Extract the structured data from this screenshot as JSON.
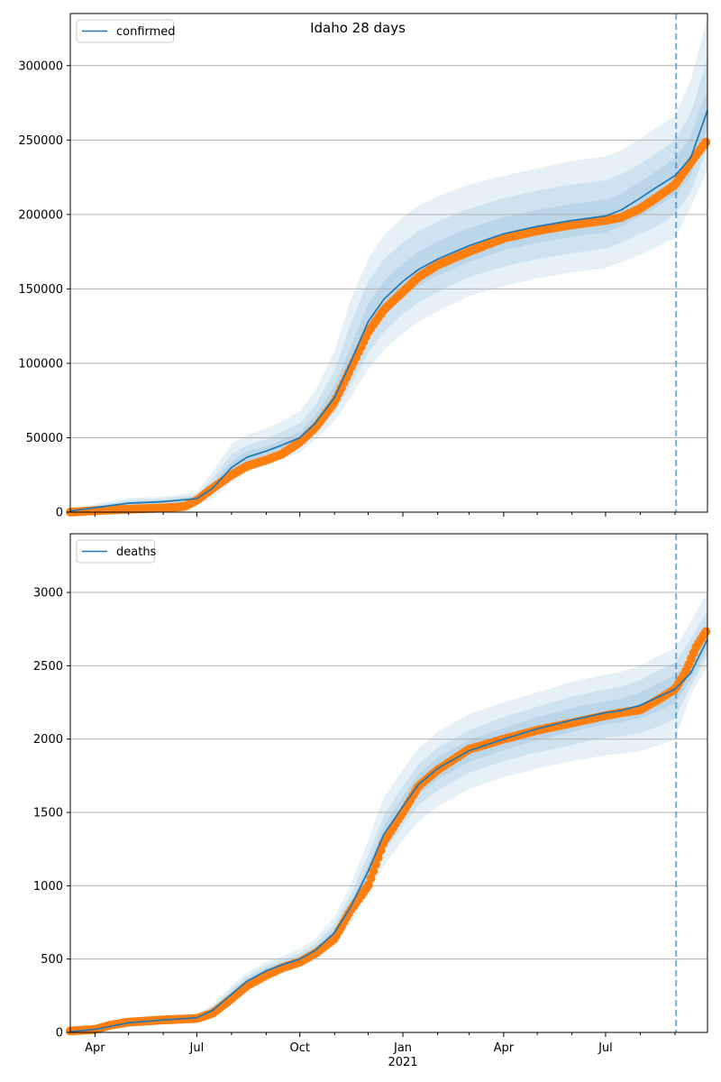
{
  "title": "Idaho 28 days",
  "colors": {
    "model_line": "#1f77b4",
    "observed": "#ff7f0e",
    "band": "#1f77b4",
    "grid": "#b0b0b0",
    "forecast_line": "#1f77b4"
  },
  "x_axis": {
    "start": "2020-03-10",
    "end": "2021-09-30",
    "month_ticks": [
      "2020-04-01",
      "2020-05-01",
      "2020-06-01",
      "2020-07-01",
      "2020-08-01",
      "2020-09-01",
      "2020-10-01",
      "2020-11-01",
      "2020-12-01",
      "2021-01-01",
      "2021-02-01",
      "2021-03-01",
      "2021-04-01",
      "2021-05-01",
      "2021-06-01",
      "2021-07-01",
      "2021-08-01",
      "2021-09-01",
      "2021-10-01"
    ],
    "labels": [
      {
        "date": "2020-04-01",
        "text": "Apr"
      },
      {
        "date": "2020-07-01",
        "text": "Jul"
      },
      {
        "date": "2020-10-01",
        "text": "Oct"
      },
      {
        "date": "2021-01-01",
        "text": "Jan"
      },
      {
        "date": "2021-04-01",
        "text": "Apr"
      },
      {
        "date": "2021-07-01",
        "text": "Jul"
      }
    ],
    "year_label": {
      "date": "2021-01-01",
      "text": "2021"
    },
    "forecast_start": "2021-09-02"
  },
  "chart_data": [
    {
      "type": "line",
      "legend": "confirmed",
      "legend_position": "top-left",
      "ylim": [
        0,
        335000
      ],
      "yticks": [
        0,
        50000,
        100000,
        150000,
        200000,
        250000,
        300000
      ],
      "grid": "y",
      "model": {
        "x": [
          "2020-03-10",
          "2020-04-01",
          "2020-05-01",
          "2020-06-01",
          "2020-07-01",
          "2020-07-15",
          "2020-08-01",
          "2020-08-15",
          "2020-09-01",
          "2020-09-15",
          "2020-10-01",
          "2020-10-15",
          "2020-11-01",
          "2020-11-15",
          "2020-12-01",
          "2020-12-15",
          "2021-01-01",
          "2021-01-15",
          "2021-02-01",
          "2021-03-01",
          "2021-04-01",
          "2021-05-01",
          "2021-06-01",
          "2021-07-01",
          "2021-07-15",
          "2021-08-01",
          "2021-08-15",
          "2021-09-01",
          "2021-09-15",
          "2021-09-30"
        ],
        "y": [
          800,
          3000,
          6000,
          7000,
          9000,
          16000,
          30000,
          37000,
          41000,
          45000,
          50000,
          60000,
          77000,
          100000,
          128000,
          143000,
          155000,
          163000,
          170000,
          179000,
          187000,
          192000,
          196000,
          199000,
          203000,
          211000,
          218000,
          226000,
          238000,
          270000
        ],
        "bands": [
          {
            "lo": [
              0,
              1500,
              3500,
              4200,
              5000,
              9000,
              20000,
              27000,
              32000,
              36000,
              40000,
              49000,
              61000,
              77000,
              96000,
              109000,
              120000,
              128000,
              135000,
              145000,
              152000,
              157000,
              161000,
              164000,
              168000,
              173000,
              178000,
              184000,
              205000,
              230000
            ],
            "hi": [
              1800,
              5500,
              9500,
              10500,
              13500,
              27000,
              46000,
              52000,
              56000,
              61000,
              68000,
              82000,
              108000,
              142000,
              170000,
              186000,
              198000,
              206000,
              212000,
              220000,
              226000,
              231000,
              236000,
              239000,
              243000,
              251000,
              258000,
              266000,
              290000,
              332000
            ]
          },
          {
            "lo": [
              200,
              2000,
              4200,
              5000,
              6200,
              11500,
              24000,
              31000,
              35500,
              39500,
              44000,
              53000,
              67000,
              85000,
              107000,
              121000,
              133000,
              141000,
              148000,
              158000,
              165000,
              170000,
              174000,
              177000,
              181000,
              187000,
              192000,
              200000,
              215000,
              245000
            ],
            "hi": [
              1400,
              4500,
              8000,
              9000,
              11500,
              22500,
              39000,
              45000,
              49000,
              54000,
              60000,
              72000,
              95000,
              126000,
              155000,
              170000,
              181000,
              189000,
              195000,
              204000,
              211000,
              216000,
              220000,
              223000,
              227000,
              234000,
              241000,
              250000,
              268000,
              305000
            ]
          },
          {
            "lo": [
              500,
              2500,
              5000,
              6000,
              7500,
              13500,
              27000,
              34000,
              38500,
              42500,
              47000,
              57000,
              72000,
              93000,
              118000,
              132000,
              144000,
              152000,
              159000,
              168000,
              176000,
              181000,
              185000,
              188000,
              192000,
              199000,
              205000,
              213000,
              226000,
              258000
            ],
            "hi": [
              1100,
              3700,
              7000,
              8000,
              10300,
              19000,
              34000,
              41000,
              44000,
              48500,
              54000,
              65000,
              85000,
              110000,
              140000,
              155000,
              167000,
              175000,
              182000,
              191000,
              198000,
              203000,
              207000,
              210000,
              214000,
              222000,
              229000,
              238000,
              252000,
              285000
            ]
          }
        ]
      },
      "observed": {
        "x": [
          "2020-03-10",
          "2020-04-01",
          "2020-05-01",
          "2020-06-01",
          "2020-06-20",
          "2020-07-01",
          "2020-07-15",
          "2020-08-01",
          "2020-08-15",
          "2020-09-01",
          "2020-09-15",
          "2020-10-01",
          "2020-10-15",
          "2020-11-01",
          "2020-11-15",
          "2020-12-01",
          "2020-12-15",
          "2021-01-01",
          "2021-01-15",
          "2021-02-01",
          "2021-03-01",
          "2021-04-01",
          "2021-05-01",
          "2021-06-01",
          "2021-07-01",
          "2021-07-15",
          "2021-08-01",
          "2021-08-15",
          "2021-09-01",
          "2021-09-15",
          "2021-09-30"
        ],
        "y": [
          0,
          1000,
          2000,
          2800,
          3800,
          8000,
          16000,
          25000,
          31000,
          35000,
          39000,
          47000,
          57000,
          74000,
          96000,
          121000,
          136000,
          148000,
          158000,
          166000,
          175000,
          184000,
          189000,
          193000,
          196000,
          198000,
          204000,
          211000,
          220000,
          235000,
          250000
        ]
      }
    },
    {
      "type": "line",
      "legend": "deaths",
      "legend_position": "top-left",
      "ylim": [
        0,
        3400
      ],
      "yticks": [
        0,
        500,
        1000,
        1500,
        2000,
        2500,
        3000
      ],
      "grid": "y",
      "model": {
        "x": [
          "2020-03-10",
          "2020-04-01",
          "2020-05-01",
          "2020-06-01",
          "2020-07-01",
          "2020-07-15",
          "2020-08-01",
          "2020-08-15",
          "2020-09-01",
          "2020-09-15",
          "2020-10-01",
          "2020-10-15",
          "2020-11-01",
          "2020-11-15",
          "2020-12-01",
          "2020-12-15",
          "2021-01-01",
          "2021-01-15",
          "2021-02-01",
          "2021-03-01",
          "2021-04-01",
          "2021-05-01",
          "2021-06-01",
          "2021-07-01",
          "2021-07-15",
          "2021-08-01",
          "2021-08-15",
          "2021-09-01",
          "2021-09-15",
          "2021-09-30"
        ],
        "y": [
          5,
          20,
          65,
          85,
          100,
          150,
          260,
          350,
          420,
          460,
          500,
          560,
          680,
          850,
          1100,
          1350,
          1540,
          1690,
          1800,
          1920,
          2000,
          2070,
          2130,
          2180,
          2195,
          2230,
          2280,
          2340,
          2450,
          2680
        ],
        "bands": [
          {
            "lo": [
              0,
              5,
              40,
              60,
              75,
              110,
              200,
              290,
              360,
              400,
              440,
              490,
              590,
              740,
              940,
              1140,
              1310,
              1440,
              1540,
              1660,
              1740,
              1800,
              1850,
              1890,
              1900,
              1920,
              1950,
              2000,
              2300,
              2500
            ],
            "hi": [
              15,
              40,
              90,
              110,
              125,
              190,
              320,
              410,
              480,
              520,
              570,
              640,
              790,
              1000,
              1310,
              1600,
              1790,
              1940,
              2050,
              2170,
              2250,
              2320,
              2390,
              2440,
              2460,
              2500,
              2560,
              2620,
              2800,
              3000
            ]
          },
          {
            "lo": [
              2,
              10,
              50,
              70,
              85,
              125,
              225,
              315,
              385,
              425,
              465,
              520,
              630,
              790,
              1010,
              1230,
              1410,
              1550,
              1650,
              1770,
              1850,
              1910,
              1960,
              2010,
              2020,
              2040,
              2080,
              2140,
              2360,
              2570
            ],
            "hi": [
              10,
              32,
              80,
              100,
              115,
              175,
              295,
              385,
              455,
              495,
              540,
              605,
              740,
              930,
              1210,
              1480,
              1680,
              1830,
              1940,
              2060,
              2150,
              2220,
              2290,
              2340,
              2360,
              2400,
              2460,
              2520,
              2680,
              2880
            ]
          },
          {
            "lo": [
              3,
              15,
              57,
              77,
              92,
              137,
              242,
              332,
              402,
              442,
              482,
              540,
              655,
              818,
              1060,
              1290,
              1470,
              1620,
              1725,
              1845,
              1925,
              1990,
              2050,
              2100,
              2115,
              2140,
              2185,
              2245,
              2405,
              2625
            ],
            "hi": [
              7,
              25,
              73,
              93,
              108,
              163,
              278,
              368,
              438,
              478,
              518,
              580,
              705,
              882,
              1140,
              1410,
              1610,
              1760,
              1875,
              1995,
              2075,
              2150,
              2210,
              2260,
              2275,
              2320,
              2375,
              2435,
              2550,
              2760
            ]
          }
        ]
      },
      "observed": {
        "x": [
          "2020-03-10",
          "2020-04-01",
          "2020-04-15",
          "2020-05-01",
          "2020-06-01",
          "2020-07-01",
          "2020-07-15",
          "2020-08-01",
          "2020-08-15",
          "2020-09-01",
          "2020-09-15",
          "2020-10-01",
          "2020-10-15",
          "2020-11-01",
          "2020-11-15",
          "2020-12-01",
          "2020-12-15",
          "2021-01-01",
          "2021-01-15",
          "2021-02-01",
          "2021-03-01",
          "2021-04-01",
          "2021-05-01",
          "2021-06-01",
          "2021-07-01",
          "2021-07-15",
          "2021-08-01",
          "2021-08-15",
          "2021-09-01",
          "2021-09-10",
          "2021-09-20",
          "2021-09-30"
        ],
        "y": [
          10,
          20,
          50,
          70,
          85,
          95,
          130,
          230,
          320,
          390,
          440,
          480,
          540,
          640,
          830,
          1000,
          1300,
          1500,
          1680,
          1790,
          1930,
          2000,
          2060,
          2110,
          2160,
          2180,
          2200,
          2260,
          2340,
          2450,
          2630,
          2750
        ]
      }
    }
  ]
}
